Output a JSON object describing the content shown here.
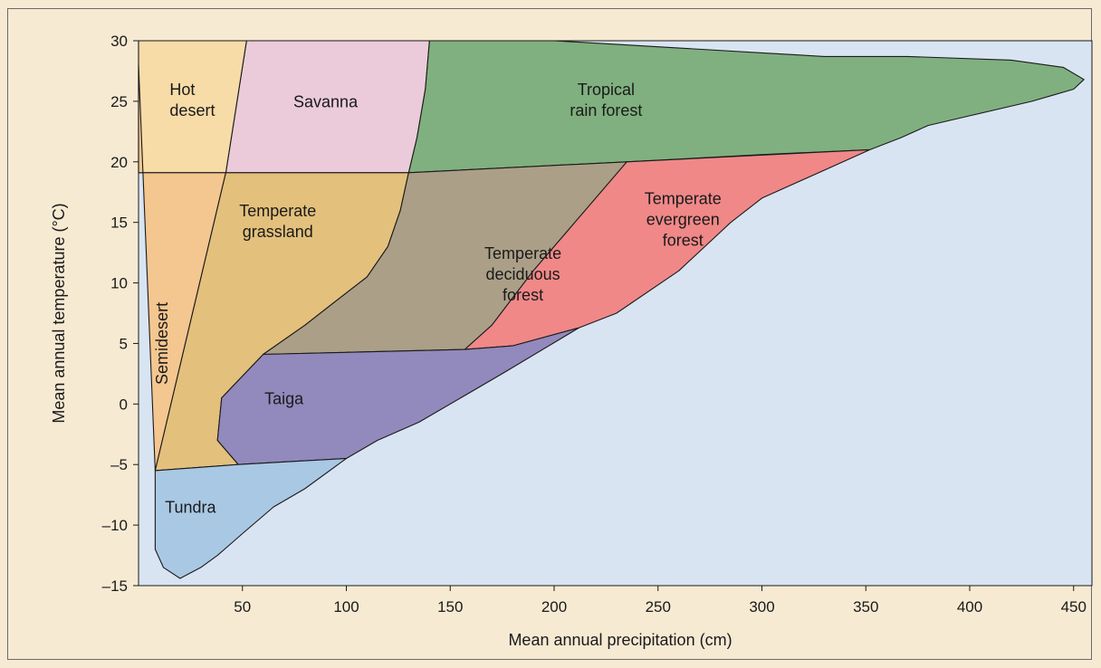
{
  "chart_data": {
    "type": "area",
    "title": "",
    "xlabel": "Mean annual precipitation (cm)",
    "ylabel": "Mean annual temperature (°C)",
    "xlim": [
      0,
      460
    ],
    "ylim": [
      -15,
      30
    ],
    "x_ticks": [
      50,
      100,
      150,
      200,
      250,
      300,
      350,
      400,
      450
    ],
    "y_ticks": [
      30,
      25,
      20,
      15,
      10,
      5,
      0,
      -5,
      -10,
      -15
    ],
    "grid": false,
    "legend": "none",
    "plot_background": "#d9e4f2",
    "regions": [
      {
        "label": "Tropical\nrain forest",
        "color": "#80b07f",
        "label_at": [
          225,
          25.5
        ],
        "boundary": [
          [
            140,
            30
          ],
          [
            200,
            30
          ],
          [
            250,
            29.5
          ],
          [
            300,
            29
          ],
          [
            330,
            28.7
          ],
          [
            370,
            28.7
          ],
          [
            420,
            28.4
          ],
          [
            445,
            27.8
          ],
          [
            455,
            26.8
          ],
          [
            450,
            26
          ],
          [
            440,
            25.5
          ],
          [
            430,
            25
          ],
          [
            400,
            23.8
          ],
          [
            380,
            23
          ],
          [
            367,
            22
          ],
          [
            352,
            21
          ],
          [
            300,
            20.6
          ],
          [
            235,
            20
          ],
          [
            130,
            19.1
          ],
          [
            134,
            22
          ],
          [
            138,
            26
          ],
          [
            140,
            30
          ]
        ]
      },
      {
        "label": "Savanna",
        "color": "#ebcbd9",
        "label_at": [
          90,
          24.5
        ],
        "boundary": [
          [
            52,
            30
          ],
          [
            140,
            30
          ],
          [
            138,
            26
          ],
          [
            134,
            22
          ],
          [
            130,
            19.1
          ],
          [
            42,
            19.1
          ],
          [
            52,
            30
          ]
        ]
      },
      {
        "label": "Hot\ndesert",
        "color": "#f7dca8",
        "label_at": [
          15,
          25.5
        ],
        "boundary": [
          [
            0,
            30
          ],
          [
            52,
            30
          ],
          [
            42,
            19.1
          ],
          [
            0,
            19.1
          ]
        ]
      },
      {
        "label": "Semidesert",
        "color": "#f4c690",
        "label_at": [
          14,
          5
        ],
        "boundary": [
          [
            0,
            19.1
          ],
          [
            42,
            19.1
          ],
          [
            8,
            -5.5
          ],
          [
            0,
            28
          ],
          [
            0,
            19.1
          ]
        ]
      },
      {
        "label": "Temperate\ngrassland",
        "color": "#e3c07c",
        "label_at": [
          67,
          15.5
        ],
        "boundary": [
          [
            42,
            19.1
          ],
          [
            130,
            19.1
          ],
          [
            126,
            16
          ],
          [
            120,
            13
          ],
          [
            110,
            10.5
          ],
          [
            95,
            8.5
          ],
          [
            80,
            6.5
          ],
          [
            60,
            4.1
          ],
          [
            40,
            0.5
          ],
          [
            38,
            -3
          ],
          [
            48,
            -5
          ],
          [
            8,
            -5.5
          ],
          [
            42,
            19.1
          ]
        ]
      },
      {
        "label": "Temperate\ndeciduous\nforest",
        "color": "#ab9f88",
        "label_at": [
          185,
          12
        ],
        "boundary": [
          [
            130,
            19.1
          ],
          [
            235,
            20
          ],
          [
            215,
            16
          ],
          [
            190,
            11
          ],
          [
            170,
            6.5
          ],
          [
            157,
            4.5
          ],
          [
            60,
            4.1
          ],
          [
            80,
            6.5
          ],
          [
            95,
            8.5
          ],
          [
            110,
            10.5
          ],
          [
            120,
            13
          ],
          [
            126,
            16
          ],
          [
            130,
            19.1
          ]
        ]
      },
      {
        "label": "Temperate\nevergreen\nforest",
        "color": "#f08888",
        "label_at": [
          262,
          16.5
        ],
        "boundary": [
          [
            235,
            20
          ],
          [
            352,
            21
          ],
          [
            300,
            17
          ],
          [
            285,
            15
          ],
          [
            260,
            11
          ],
          [
            230,
            7.5
          ],
          [
            212,
            6.3
          ],
          [
            180,
            4.8
          ],
          [
            157,
            4.5
          ],
          [
            170,
            6.5
          ],
          [
            190,
            11
          ],
          [
            215,
            16
          ],
          [
            235,
            20
          ]
        ]
      },
      {
        "label": "Taiga",
        "color": "#9289bc",
        "label_at": [
          70,
          0
        ],
        "boundary": [
          [
            60,
            4.1
          ],
          [
            157,
            4.5
          ],
          [
            180,
            4.8
          ],
          [
            212,
            6.3
          ],
          [
            175,
            2.5
          ],
          [
            135,
            -1.5
          ],
          [
            115,
            -3
          ],
          [
            100,
            -4.5
          ],
          [
            48,
            -5
          ],
          [
            38,
            -3
          ],
          [
            40,
            0.5
          ],
          [
            60,
            4.1
          ]
        ]
      },
      {
        "label": "Tundra",
        "color": "#a9c8e4",
        "label_at": [
          25,
          -9
        ],
        "boundary": [
          [
            8,
            -5.5
          ],
          [
            48,
            -5
          ],
          [
            100,
            -4.5
          ],
          [
            80,
            -7
          ],
          [
            65,
            -8.5
          ],
          [
            50,
            -10.7
          ],
          [
            38,
            -12.5
          ],
          [
            30,
            -13.5
          ],
          [
            20,
            -14.4
          ],
          [
            12,
            -13.5
          ],
          [
            8,
            -12
          ],
          [
            8,
            -5.5
          ]
        ]
      }
    ]
  }
}
